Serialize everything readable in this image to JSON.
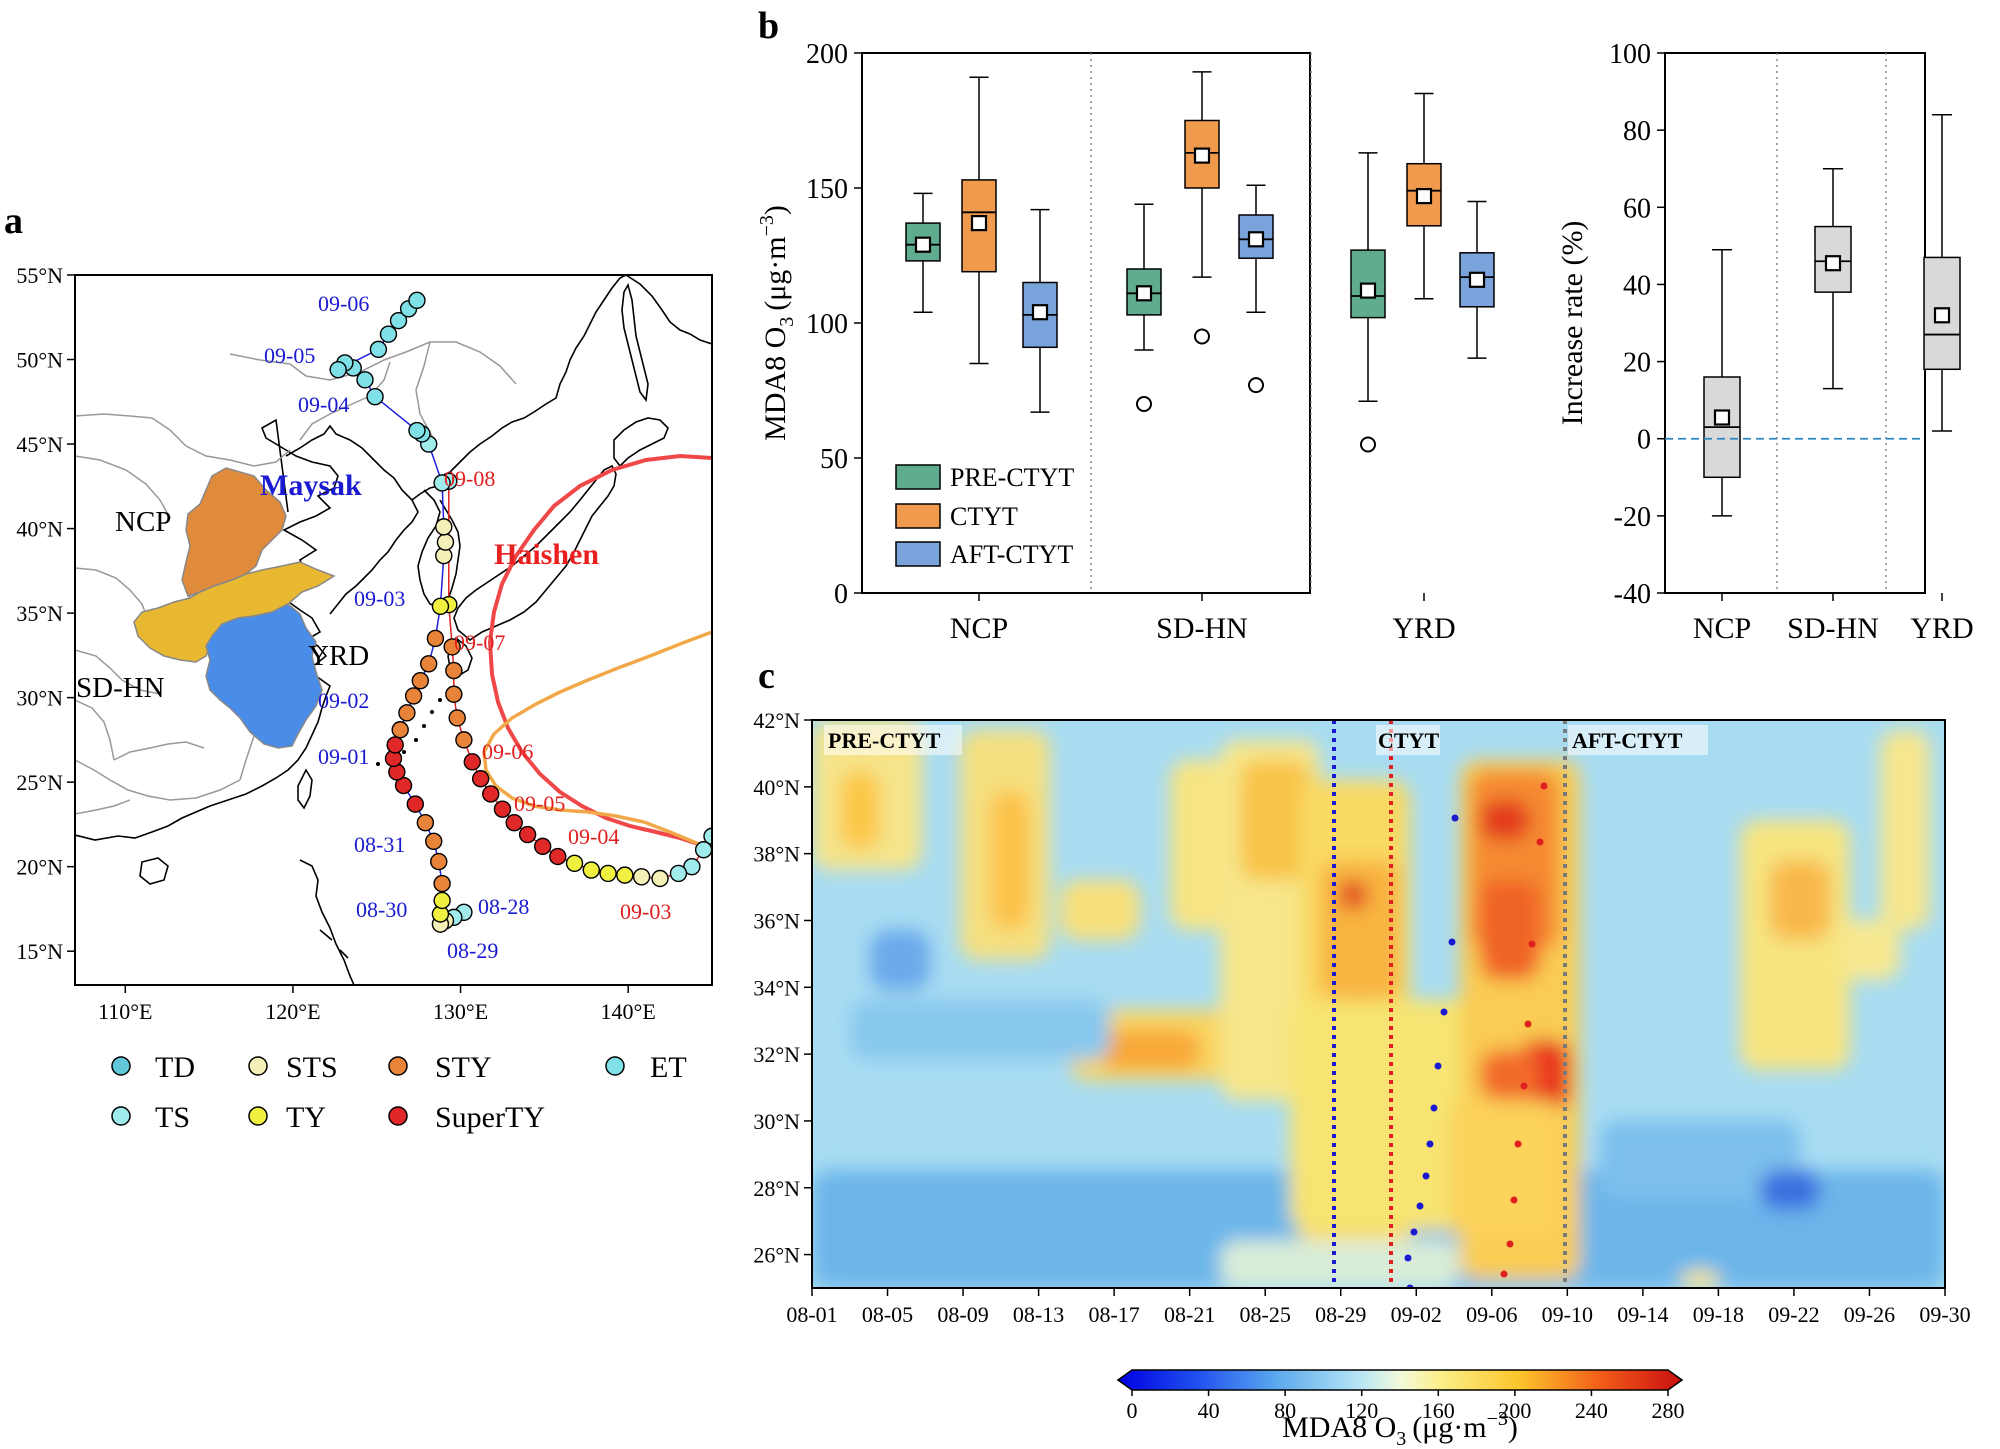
{
  "panel_labels": {
    "a": "a",
    "b": "b",
    "c": "c"
  },
  "chart_data": [
    {
      "panel": "a",
      "type": "map",
      "lon_ticks": [
        "110°E",
        "120°E",
        "130°E",
        "140°E"
      ],
      "lat_ticks": [
        "55°N",
        "50°N",
        "45°N",
        "40°N",
        "35°N",
        "30°N",
        "25°N",
        "20°N",
        "15°N"
      ],
      "lon_range": [
        107,
        145
      ],
      "lat_range": [
        13,
        55
      ],
      "regions": [
        {
          "name": "NCP",
          "color": "#e08a3c"
        },
        {
          "name": "SD-HN",
          "color": "#e8b830"
        },
        {
          "name": "YRD",
          "color": "#4a8de8"
        }
      ],
      "typhoon_labels": [
        {
          "name": "Maysak",
          "color": "#1a1ad0"
        },
        {
          "name": "Haishen",
          "color": "#e82020"
        }
      ],
      "maysak_dates": [
        "09-06",
        "09-05",
        "09-04",
        "09-03",
        "09-02",
        "09-01",
        "08-31",
        "08-30",
        "08-29",
        "08-28"
      ],
      "haishen_dates": [
        "09-08",
        "09-07",
        "09-06",
        "09-05",
        "09-04",
        "09-03"
      ],
      "intensity_legend": [
        {
          "label": "TD",
          "color": "#60c8d8"
        },
        {
          "label": "STS",
          "color": "#f4f0b8"
        },
        {
          "label": "STY",
          "color": "#e8843a"
        },
        {
          "label": "ET",
          "color": "#80e0e8"
        },
        {
          "label": "TS",
          "color": "#a0ecec"
        },
        {
          "label": "TY",
          "color": "#f0f040"
        },
        {
          "label": "SuperTY",
          "color": "#e02828"
        }
      ],
      "maysak_track": [
        {
          "lon": 130.2,
          "lat": 17.3,
          "cat": "TS"
        },
        {
          "lon": 129.6,
          "lat": 17.0,
          "cat": "TS"
        },
        {
          "lon": 129.1,
          "lat": 16.8,
          "cat": "STS"
        },
        {
          "lon": 128.8,
          "lat": 16.6,
          "cat": "STS"
        },
        {
          "lon": 128.8,
          "lat": 17.2,
          "cat": "TY"
        },
        {
          "lon": 128.9,
          "lat": 18.0,
          "cat": "TY"
        },
        {
          "lon": 128.9,
          "lat": 19.0,
          "cat": "STY"
        },
        {
          "lon": 128.7,
          "lat": 20.3,
          "cat": "STY"
        },
        {
          "lon": 128.4,
          "lat": 21.5,
          "cat": "STY"
        },
        {
          "lon": 127.9,
          "lat": 22.6,
          "cat": "STY"
        },
        {
          "lon": 127.3,
          "lat": 23.7,
          "cat": "SuperTY"
        },
        {
          "lon": 126.6,
          "lat": 24.8,
          "cat": "SuperTY"
        },
        {
          "lon": 126.2,
          "lat": 25.6,
          "cat": "SuperTY"
        },
        {
          "lon": 126.0,
          "lat": 26.4,
          "cat": "SuperTY"
        },
        {
          "lon": 126.1,
          "lat": 27.2,
          "cat": "SuperTY"
        },
        {
          "lon": 126.4,
          "lat": 28.1,
          "cat": "STY"
        },
        {
          "lon": 126.8,
          "lat": 29.1,
          "cat": "STY"
        },
        {
          "lon": 127.2,
          "lat": 30.1,
          "cat": "STY"
        },
        {
          "lon": 127.6,
          "lat": 31.0,
          "cat": "STY"
        },
        {
          "lon": 128.1,
          "lat": 32.0,
          "cat": "STY"
        },
        {
          "lon": 128.5,
          "lat": 33.5,
          "cat": "STY"
        },
        {
          "lon": 128.8,
          "lat": 35.4,
          "cat": "TY"
        },
        {
          "lon": 129.0,
          "lat": 38.4,
          "cat": "STS"
        },
        {
          "lon": 129.1,
          "lat": 39.2,
          "cat": "STS"
        },
        {
          "lon": 129.0,
          "lat": 40.1,
          "cat": "STS"
        },
        {
          "lon": 128.9,
          "lat": 42.7,
          "cat": "TS"
        },
        {
          "lon": 128.1,
          "lat": 45.0,
          "cat": "TS"
        },
        {
          "lon": 127.7,
          "lat": 45.6,
          "cat": "ET"
        },
        {
          "lon": 127.4,
          "lat": 45.8,
          "cat": "ET"
        },
        {
          "lon": 124.9,
          "lat": 47.8,
          "cat": "ET"
        },
        {
          "lon": 124.3,
          "lat": 48.8,
          "cat": "ET"
        },
        {
          "lon": 123.6,
          "lat": 49.5,
          "cat": "ET"
        },
        {
          "lon": 123.1,
          "lat": 49.8,
          "cat": "ET"
        },
        {
          "lon": 122.7,
          "lat": 49.4,
          "cat": "ET"
        },
        {
          "lon": 125.1,
          "lat": 50.6,
          "cat": "ET"
        },
        {
          "lon": 125.7,
          "lat": 51.5,
          "cat": "ET"
        },
        {
          "lon": 126.3,
          "lat": 52.3,
          "cat": "ET"
        },
        {
          "lon": 126.9,
          "lat": 53.0,
          "cat": "ET"
        },
        {
          "lon": 127.4,
          "lat": 53.5,
          "cat": "ET"
        }
      ],
      "haishen_track": [
        {
          "lon": 145.0,
          "lat": 21.8,
          "cat": "TS"
        },
        {
          "lon": 144.5,
          "lat": 21.0,
          "cat": "TS"
        },
        {
          "lon": 143.8,
          "lat": 20.0,
          "cat": "TS"
        },
        {
          "lon": 143.0,
          "lat": 19.6,
          "cat": "TS"
        },
        {
          "lon": 141.9,
          "lat": 19.3,
          "cat": "STS"
        },
        {
          "lon": 140.8,
          "lat": 19.4,
          "cat": "STS"
        },
        {
          "lon": 139.8,
          "lat": 19.5,
          "cat": "TY"
        },
        {
          "lon": 138.8,
          "lat": 19.6,
          "cat": "TY"
        },
        {
          "lon": 137.8,
          "lat": 19.8,
          "cat": "TY"
        },
        {
          "lon": 136.8,
          "lat": 20.2,
          "cat": "TY"
        },
        {
          "lon": 135.8,
          "lat": 20.6,
          "cat": "SuperTY"
        },
        {
          "lon": 134.9,
          "lat": 21.2,
          "cat": "SuperTY"
        },
        {
          "lon": 134.0,
          "lat": 21.9,
          "cat": "SuperTY"
        },
        {
          "lon": 133.2,
          "lat": 22.6,
          "cat": "SuperTY"
        },
        {
          "lon": 132.5,
          "lat": 23.4,
          "cat": "SuperTY"
        },
        {
          "lon": 131.8,
          "lat": 24.3,
          "cat": "SuperTY"
        },
        {
          "lon": 131.2,
          "lat": 25.2,
          "cat": "SuperTY"
        },
        {
          "lon": 130.7,
          "lat": 26.2,
          "cat": "SuperTY"
        },
        {
          "lon": 130.2,
          "lat": 27.5,
          "cat": "STY"
        },
        {
          "lon": 129.8,
          "lat": 28.8,
          "cat": "STY"
        },
        {
          "lon": 129.6,
          "lat": 30.2,
          "cat": "STY"
        },
        {
          "lon": 129.6,
          "lat": 31.6,
          "cat": "STY"
        },
        {
          "lon": 129.5,
          "lat": 33.0,
          "cat": "STY"
        },
        {
          "lon": 129.3,
          "lat": 35.5,
          "cat": "TY"
        },
        {
          "lon": 129.3,
          "lat": 42.8,
          "cat": "TS"
        }
      ]
    },
    {
      "panel": "b-left",
      "type": "boxplot",
      "ylabel": "MDA8 O",
      "ylabel_sub": "3",
      "ylabel_unit": "(μg·m",
      "ylabel_sup": "−3",
      "ylim": [
        0,
        200
      ],
      "yticks": [
        0,
        50,
        100,
        150,
        200
      ],
      "categories": [
        "NCP",
        "SD-HN",
        "YRD"
      ],
      "series": [
        {
          "name": "PRE-CTYT",
          "color": "#5fad8e"
        },
        {
          "name": "CTYT",
          "color": "#ef9a4c"
        },
        {
          "name": "AFT-CTYT",
          "color": "#7aa3dc"
        }
      ],
      "boxes": [
        {
          "category": "NCP",
          "series": "PRE-CTYT",
          "whislo": 104,
          "q1": 123,
          "median": 129,
          "q3": 137,
          "whishi": 148,
          "mean": 129,
          "fliers": []
        },
        {
          "category": "NCP",
          "series": "CTYT",
          "whislo": 85,
          "q1": 119,
          "median": 141,
          "q3": 153,
          "whishi": 191,
          "mean": 137,
          "fliers": []
        },
        {
          "category": "NCP",
          "series": "AFT-CTYT",
          "whislo": 67,
          "q1": 91,
          "median": 103,
          "q3": 115,
          "whishi": 142,
          "mean": 104,
          "fliers": []
        },
        {
          "category": "SD-HN",
          "series": "PRE-CTYT",
          "whislo": 90,
          "q1": 103,
          "median": 111,
          "q3": 120,
          "whishi": 144,
          "mean": 111,
          "fliers": [
            70
          ]
        },
        {
          "category": "SD-HN",
          "series": "CTYT",
          "whislo": 117,
          "q1": 150,
          "median": 163,
          "q3": 175,
          "whishi": 193,
          "mean": 162,
          "fliers": [
            95
          ]
        },
        {
          "category": "SD-HN",
          "series": "AFT-CTYT",
          "whislo": 104,
          "q1": 124,
          "median": 131,
          "q3": 140,
          "whishi": 151,
          "mean": 131,
          "fliers": [
            77
          ]
        },
        {
          "category": "YRD",
          "series": "PRE-CTYT",
          "whislo": 71,
          "q1": 102,
          "median": 110,
          "q3": 127,
          "whishi": 163,
          "mean": 112,
          "fliers": [
            55
          ]
        },
        {
          "category": "YRD",
          "series": "CTYT",
          "whislo": 109,
          "q1": 136,
          "median": 149,
          "q3": 159,
          "whishi": 185,
          "mean": 147,
          "fliers": []
        },
        {
          "category": "YRD",
          "series": "AFT-CTYT",
          "whislo": 87,
          "q1": 106,
          "median": 117,
          "q3": 126,
          "whishi": 145,
          "mean": 116,
          "fliers": []
        }
      ]
    },
    {
      "panel": "b-right",
      "type": "boxplot",
      "ylabel": "Increase rate (%)",
      "ylim": [
        -40,
        100
      ],
      "yticks": [
        -40,
        -20,
        0,
        20,
        40,
        60,
        80,
        100
      ],
      "categories": [
        "NCP",
        "SD-HN",
        "YRD"
      ],
      "color": "#d9d9d9",
      "boxes": [
        {
          "category": "NCP",
          "whislo": -20,
          "q1": -10,
          "median": 3,
          "q3": 16,
          "whishi": 49,
          "mean": 5.5
        },
        {
          "category": "SD-HN",
          "whislo": 13,
          "q1": 38,
          "median": 46,
          "q3": 55,
          "whishi": 70,
          "mean": 45.5
        },
        {
          "category": "YRD",
          "whislo": 2,
          "q1": 18,
          "median": 27,
          "q3": 47,
          "whishi": 84,
          "mean": 32
        }
      ]
    },
    {
      "panel": "c",
      "type": "heatmap",
      "x_ticks": [
        "08-01",
        "08-05",
        "08-09",
        "08-13",
        "08-17",
        "08-21",
        "08-25",
        "08-29",
        "09-02",
        "09-06",
        "09-10",
        "09-14",
        "09-18",
        "09-22",
        "09-26",
        "09-30"
      ],
      "y_ticks": [
        "42°N",
        "40°N",
        "38°N",
        "36°N",
        "34°N",
        "32°N",
        "30°N",
        "28°N",
        "26°N"
      ],
      "ylim": [
        25,
        42
      ],
      "period_labels": [
        "PRE-CTYT",
        "CTYT",
        "AFT-CTYT"
      ],
      "colorbar_ticks": [
        "0",
        "40",
        "80",
        "120",
        "160",
        "200",
        "240",
        "280"
      ],
      "colorbar_label": "MDA8 O",
      "colorbar_label_sub": "3",
      "colorbar_label_unit": "(μg·m",
      "colorbar_label_sup": "−3",
      "colorbar_range": [
        0,
        280
      ]
    }
  ]
}
